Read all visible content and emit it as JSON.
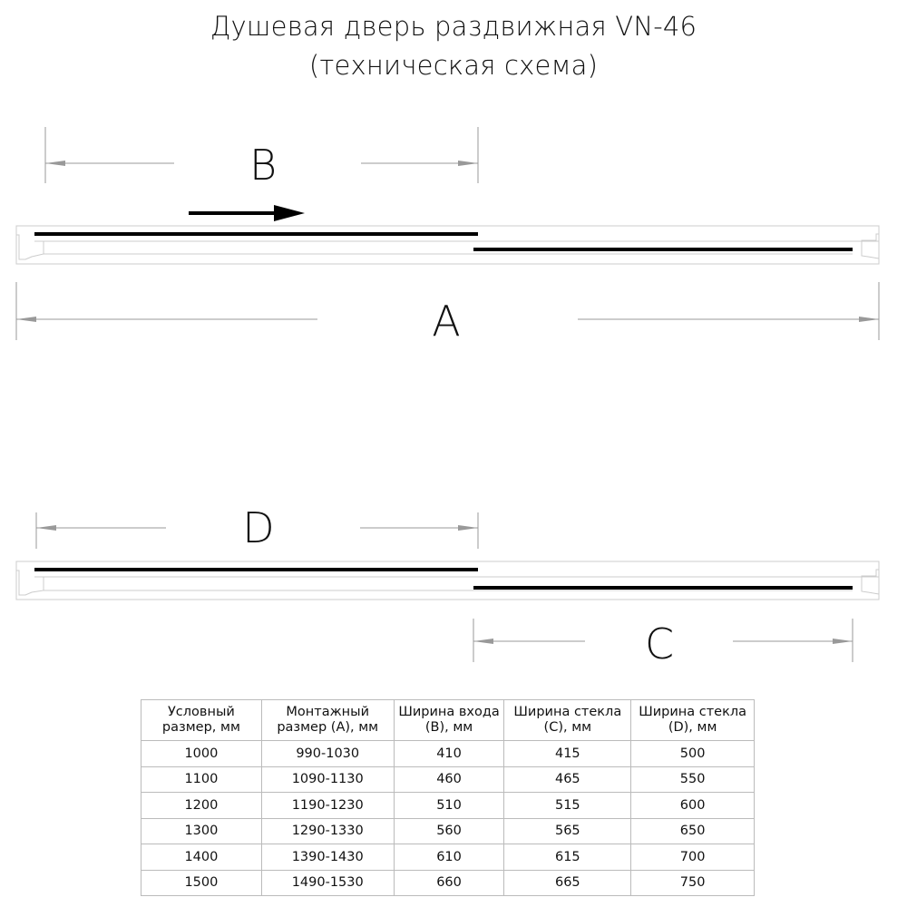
{
  "title": {
    "line1": "Душевая дверь раздвижная VN-46",
    "line2": "(техническая схема)"
  },
  "labels": {
    "A": "A",
    "B": "B",
    "C": "C",
    "D": "D"
  },
  "colors": {
    "glass": "#000000",
    "frame": "#cccccc",
    "dimension": "#999999"
  },
  "table": {
    "headers": [
      "Условный размер, мм",
      "Монтажный размер (A), мм",
      "Ширина входа (B), мм",
      "Ширина стекла (C), мм",
      "Ширина стекла (D), мм"
    ],
    "rows": [
      [
        "1000",
        "990-1030",
        "410",
        "415",
        "500"
      ],
      [
        "1100",
        "1090-1130",
        "460",
        "465",
        "550"
      ],
      [
        "1200",
        "1190-1230",
        "510",
        "515",
        "600"
      ],
      [
        "1300",
        "1290-1330",
        "560",
        "565",
        "650"
      ],
      [
        "1400",
        "1390-1430",
        "610",
        "615",
        "700"
      ],
      [
        "1500",
        "1490-1530",
        "660",
        "665",
        "750"
      ]
    ]
  }
}
